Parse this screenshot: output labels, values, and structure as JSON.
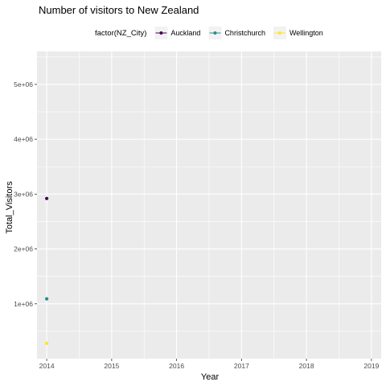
{
  "chart_data": {
    "type": "scatter",
    "title": "Number of visitors to New Zealand",
    "xlabel": "Year",
    "ylabel": "Total_Visitors",
    "xlim": [
      2013.85,
      2019.15
    ],
    "ylim": [
      0,
      5600000
    ],
    "x_ticks": [
      2014,
      2015,
      2016,
      2017,
      2018,
      2019
    ],
    "x_tick_labels": [
      "2014",
      "2015",
      "2016",
      "2017",
      "2018",
      "2019"
    ],
    "y_ticks": [
      1000000,
      2000000,
      3000000,
      4000000,
      5000000
    ],
    "y_tick_labels": [
      "1e+06",
      "2e+06",
      "3e+06",
      "4e+06",
      "5e+06"
    ],
    "grid": true,
    "legend": {
      "title": "factor(NZ_City)",
      "position": "top"
    },
    "series": [
      {
        "name": "Auckland",
        "color": "#440154",
        "points": [
          {
            "x": 2014,
            "y": 2920000
          }
        ]
      },
      {
        "name": "Christchurch",
        "color": "#21908C",
        "points": [
          {
            "x": 2014,
            "y": 1090000
          }
        ]
      },
      {
        "name": "Wellington",
        "color": "#FDE725",
        "points": [
          {
            "x": 2014,
            "y": 280000
          }
        ]
      }
    ]
  }
}
